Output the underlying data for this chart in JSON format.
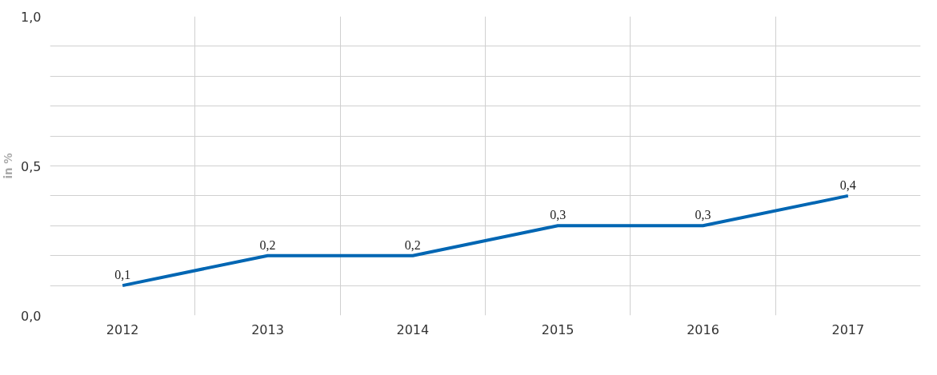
{
  "chart_data": {
    "type": "line",
    "ylabel": "in %",
    "categories": [
      "2012",
      "2013",
      "2014",
      "2015",
      "2016",
      "2017"
    ],
    "series": [
      {
        "color": "#0066b3",
        "values": [
          0.1,
          0.2,
          0.2,
          0.3,
          0.3,
          0.4
        ],
        "value_labels": [
          "0,1",
          "0,2",
          "0,2",
          "0,3",
          "0,3",
          "0,4"
        ]
      }
    ],
    "ylim": [
      0,
      1
    ],
    "yticks": [
      {
        "value": 0,
        "label": "0,0"
      },
      {
        "value": 0.1,
        "label": null
      },
      {
        "value": 0.2,
        "label": null
      },
      {
        "value": 0.3,
        "label": null
      },
      {
        "value": 0.4,
        "label": null
      },
      {
        "value": 0.5,
        "label": "0,5"
      },
      {
        "value": 0.6,
        "label": null
      },
      {
        "value": 0.7,
        "label": null
      },
      {
        "value": 0.8,
        "label": null
      },
      {
        "value": 0.9,
        "label": null
      },
      {
        "value": 1,
        "label": "1,0"
      }
    ],
    "grid": true,
    "marker": "none",
    "line_style": "solid"
  }
}
